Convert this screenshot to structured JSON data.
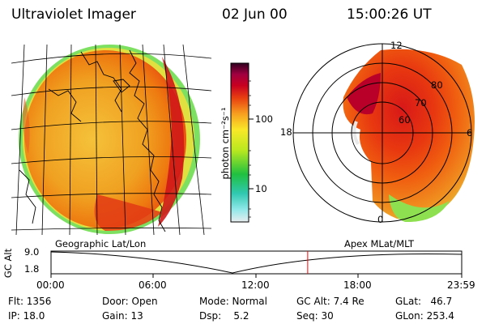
{
  "header": {
    "title": "Ultraviolet Imager",
    "date": "02 Jun 00",
    "time": "15:00:26 UT"
  },
  "colorbar": {
    "unit_label": "photon cm⁻²s⁻¹",
    "ticks": [
      "100",
      "10"
    ]
  },
  "polar_plot": {
    "mlt_labels": [
      "12",
      "18",
      "6",
      "0"
    ],
    "lat_labels": [
      "80",
      "70",
      "60"
    ]
  },
  "panel_labels": {
    "left": "Geographic Lat/Lon",
    "right": "Apex MLat/MLT"
  },
  "altitude_plot": {
    "y_axis_label": "GC Alt",
    "y_ticks": [
      "9.0",
      "1.8"
    ],
    "x_ticks": [
      "00:00",
      "06:00",
      "12:00",
      "18:00",
      "23:59"
    ],
    "current_time_fraction": 0.625,
    "marker_color": "#ff0000"
  },
  "status": {
    "flt": "Flt: 1356",
    "ip": "IP: 18.0",
    "door": "Door: Open",
    "gain": "Gain: 13",
    "mode": "Mode: Normal",
    "dsp": "Dsp:    5.2",
    "gc_alt": "GC Alt: 7.4 Re",
    "seq": "Seq: 30",
    "glat": "GLat:   46.7",
    "glon": "GLon: 253.4"
  }
}
